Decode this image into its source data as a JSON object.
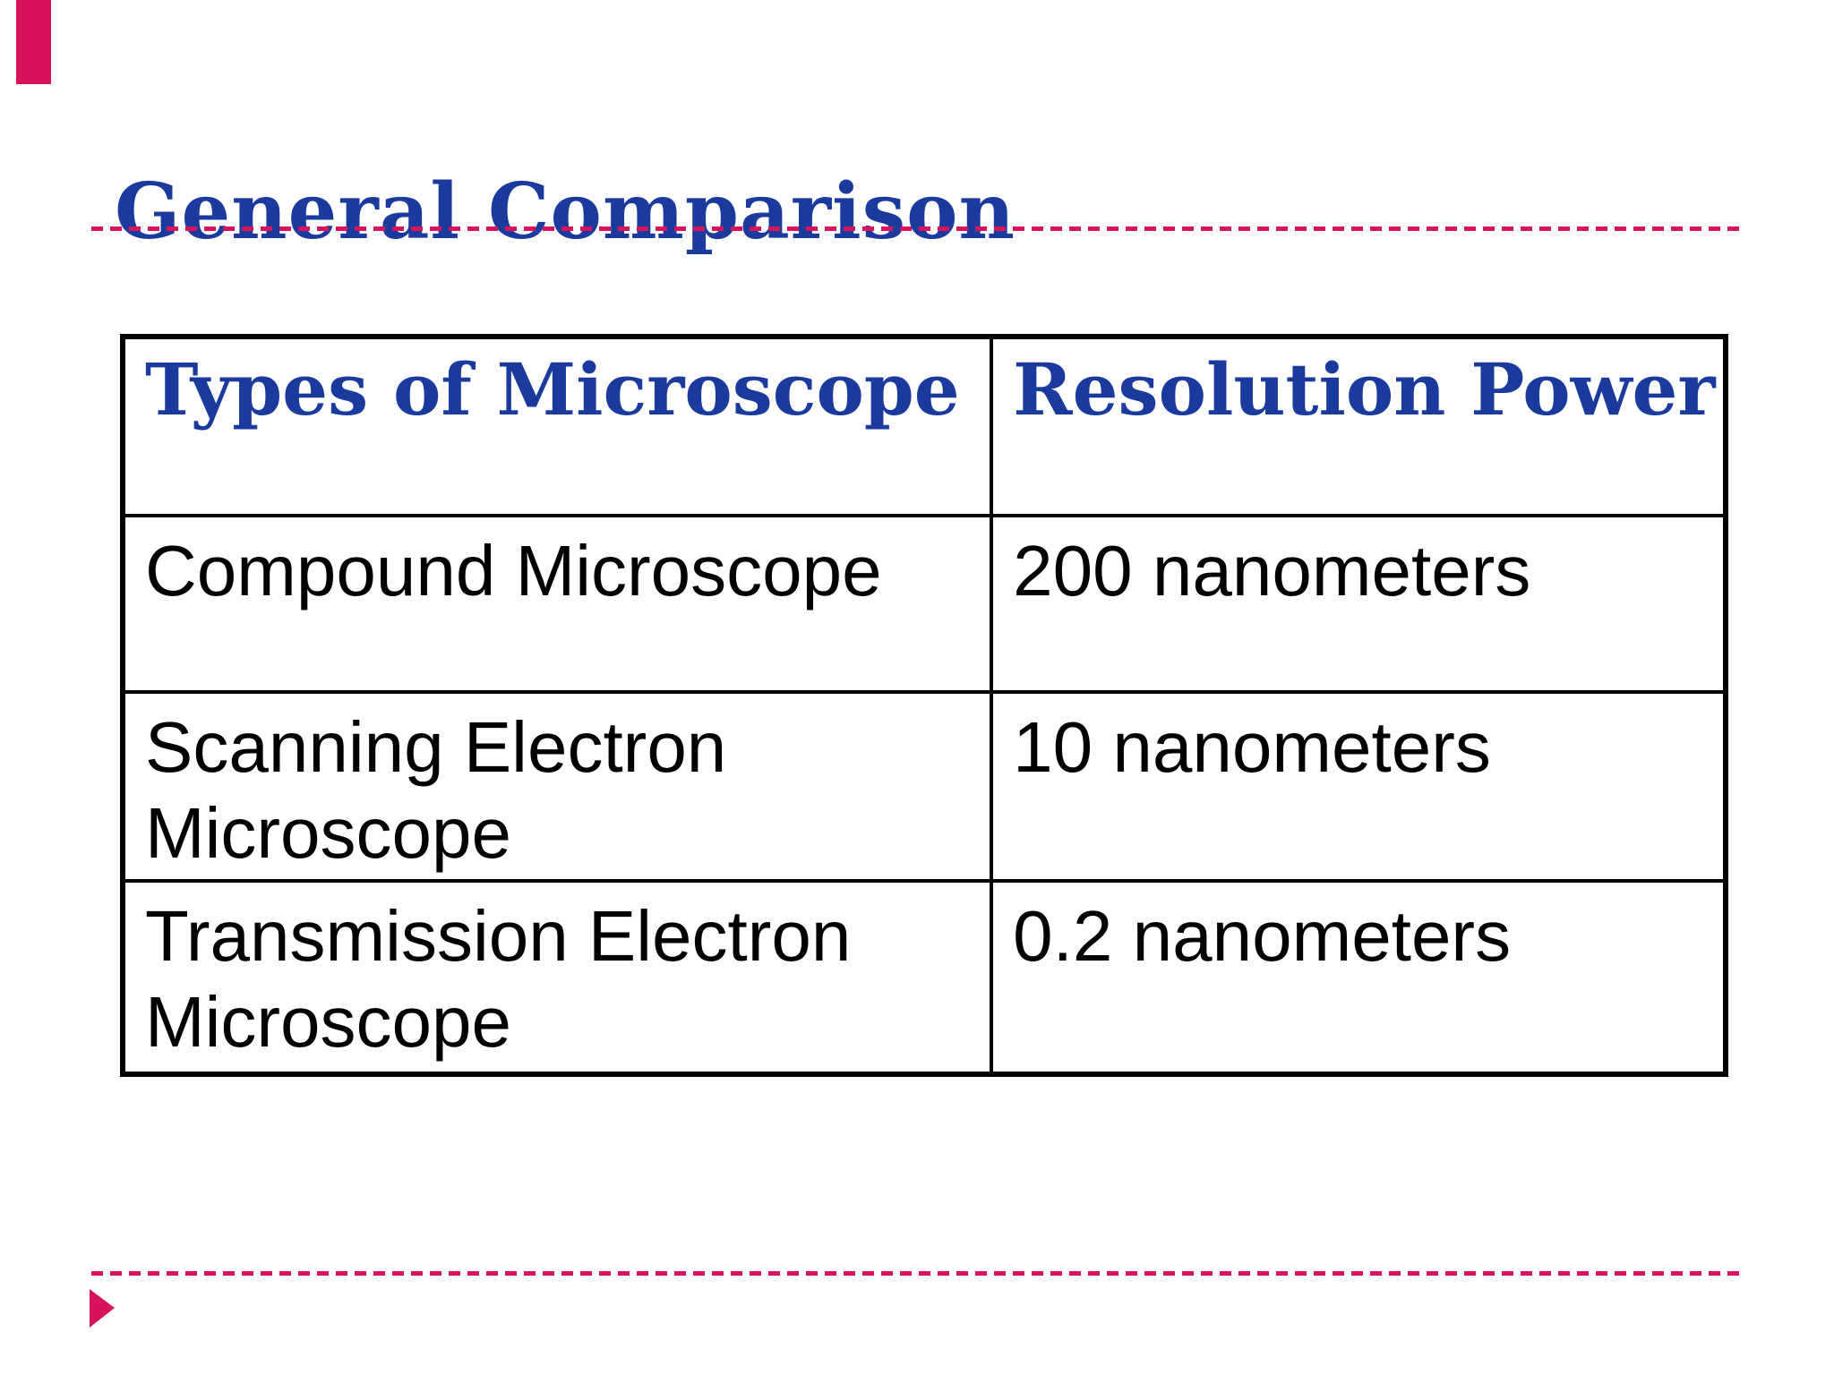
{
  "slide": {
    "title": "General Comparison"
  },
  "table": {
    "headers": [
      "Types of Microscope",
      "Resolution Power"
    ],
    "rows": [
      {
        "type": "Compound Microscope",
        "resolution": "200 nanometers"
      },
      {
        "type": "Scanning Electron Microscope",
        "resolution": "10 nanometers"
      },
      {
        "type": "Transmission Electron Microscope",
        "resolution": "0.2 nanometers"
      }
    ]
  },
  "icons": {
    "footer_arrow": "right-pointing-triangle",
    "accent_bar": "top-left-accent-rectangle"
  },
  "colors": {
    "title_blue": "#1B3A9E",
    "accent_crimson": "#D6135C",
    "table_border": "#000000",
    "body_text": "#000000",
    "background": "#FFFFFF"
  }
}
